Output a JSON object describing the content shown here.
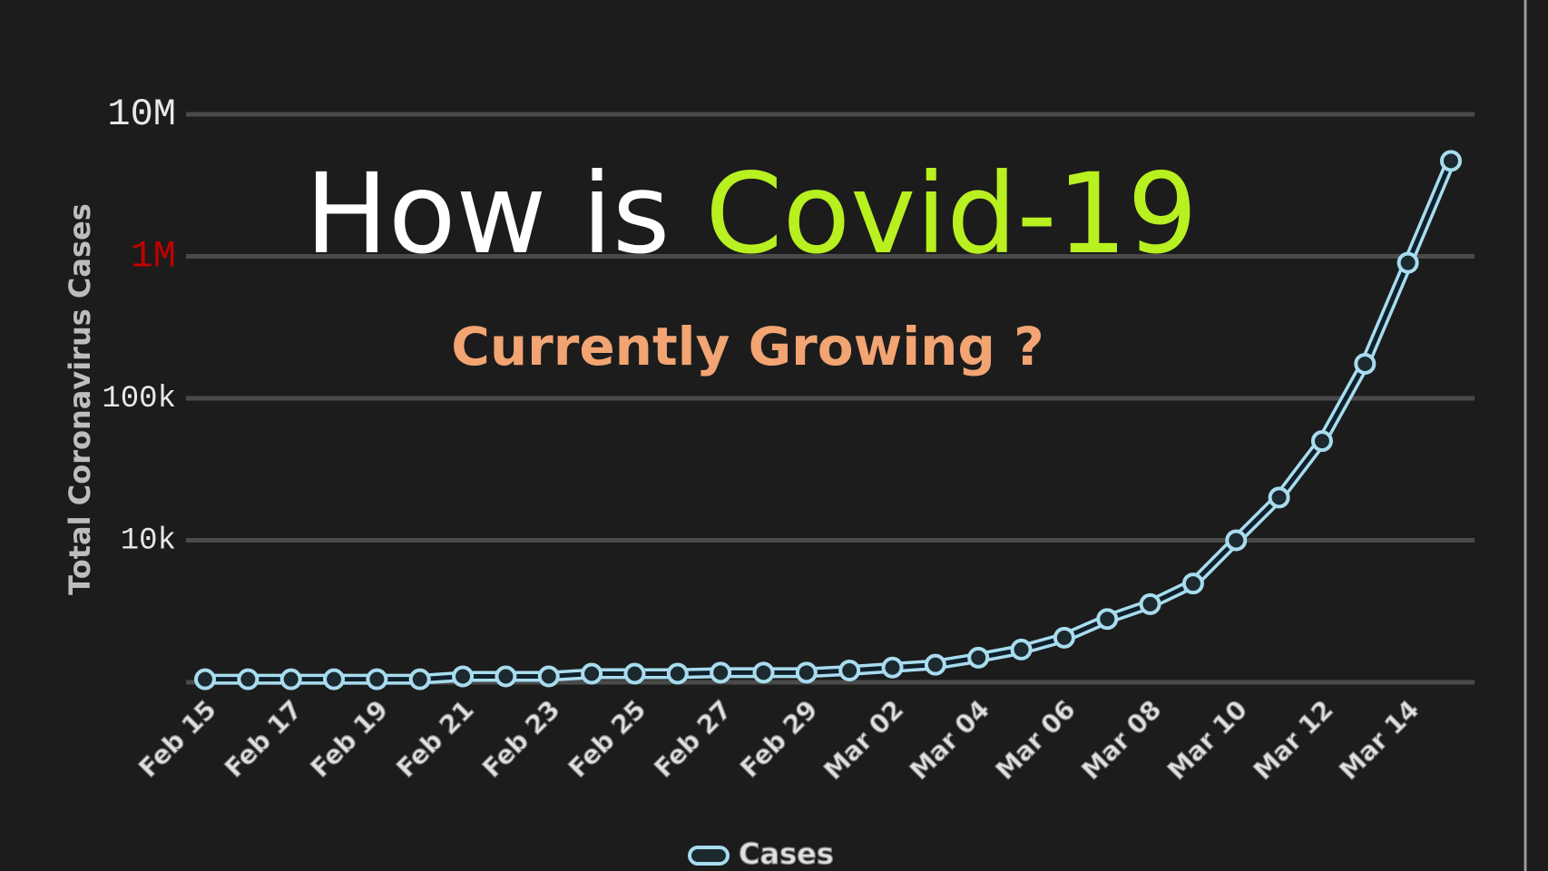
{
  "chart_data": {
    "type": "line",
    "title": "How is",
    "title_highlight": "Covid-19",
    "title_highlight_color": "#b8f020",
    "subtitle": "Currently Growing ?",
    "subtitle_color": "#f2a472",
    "y_label": "Total Coronavirus Cases",
    "log_scale": true,
    "grid": true,
    "legend": "bottom",
    "categories": [
      "Feb 15",
      null,
      "Feb 17",
      null,
      "Feb 19",
      null,
      "Feb 21",
      null,
      "Feb 23",
      null,
      "Feb 25",
      null,
      "Feb 27",
      null,
      "Feb 29",
      null,
      "Mar 02",
      null,
      "Mar 04",
      null,
      "Mar 06",
      null,
      "Mar 08",
      null,
      "Mar 10",
      null,
      "Mar 12",
      null,
      "Mar 14",
      null
    ],
    "series": [
      {
        "name": "Cases",
        "color": "#a8dcef",
        "values": [
          1050,
          1050,
          1050,
          1050,
          1050,
          1050,
          1100,
          1100,
          1100,
          1150,
          1150,
          1150,
          1170,
          1170,
          1170,
          1210,
          1270,
          1330,
          1490,
          1700,
          2060,
          2790,
          3550,
          4960,
          10000,
          20000,
          50000,
          175000,
          900000,
          4700000
        ]
      }
    ],
    "ylim": [
      1000,
      10000000
    ],
    "yticks": [
      {
        "value": 10000,
        "label": "10k"
      },
      {
        "value": 100000,
        "label": "100k"
      },
      {
        "value": 1000000,
        "label": "1M",
        "color": "#c00000"
      },
      {
        "value": 10000000,
        "label": "10M"
      }
    ]
  }
}
